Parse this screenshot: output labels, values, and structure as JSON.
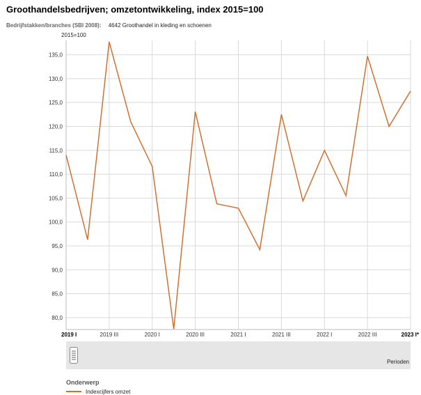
{
  "header": {
    "title": "Groothandelsbedrijven; omzetontwikkeling, index 2015=100",
    "filter_label": "Bedrijfstakken/branches (SBI 2008):",
    "filter_value": "4642 Groothandel in kleding en schoenen"
  },
  "colors": {
    "series": "#d2712f",
    "grid": "#d9d9d9",
    "timebar": "#e6e6e6"
  },
  "timebar": {
    "label": "Perioden",
    "handle_icon": "grip-handle-icon"
  },
  "legend": {
    "heading": "Onderwerp",
    "items": [
      {
        "label": "Indexcijfers omzet"
      }
    ]
  },
  "chart_data": {
    "type": "line",
    "unit_label": "2015=100",
    "ylim": [
      77.5,
      138
    ],
    "yticks": [
      80,
      85,
      90,
      95,
      100,
      105,
      110,
      115,
      120,
      125,
      130,
      135
    ],
    "ytick_labels": [
      "80,0",
      "85,0",
      "90,0",
      "95,0",
      "100,0",
      "105,0",
      "110,0",
      "115,0",
      "120,0",
      "125,0",
      "130,0",
      "135,0"
    ],
    "grid": true,
    "x": [
      "2019 I",
      "2019 II",
      "2019 III",
      "2019 IV",
      "2020 I",
      "2020 II",
      "2020 III",
      "2020 IV",
      "2021 I",
      "2021 II",
      "2021 III",
      "2021 IV",
      "2022 I",
      "2022 II",
      "2022 III",
      "2022 IV",
      "2023 I*"
    ],
    "xtick_labels": [
      {
        "index": 0,
        "label": "2019 I",
        "bold": true
      },
      {
        "index": 2,
        "label": "2019 III",
        "bold": false
      },
      {
        "index": 4,
        "label": "2020 I",
        "bold": false
      },
      {
        "index": 6,
        "label": "2020 III",
        "bold": false
      },
      {
        "index": 8,
        "label": "2021 I",
        "bold": false
      },
      {
        "index": 10,
        "label": "2021 III",
        "bold": false
      },
      {
        "index": 12,
        "label": "2022 I",
        "bold": false
      },
      {
        "index": 14,
        "label": "2022 III",
        "bold": false
      },
      {
        "index": 16,
        "label": "2023 I*",
        "bold": true
      }
    ],
    "series": [
      {
        "name": "Indexcijfers omzet",
        "values": [
          114.0,
          96.3,
          137.7,
          121.0,
          111.6,
          77.6,
          123.1,
          103.8,
          102.9,
          94.2,
          122.5,
          104.4,
          115.0,
          105.5,
          134.7,
          120.0,
          127.4
        ]
      }
    ]
  }
}
